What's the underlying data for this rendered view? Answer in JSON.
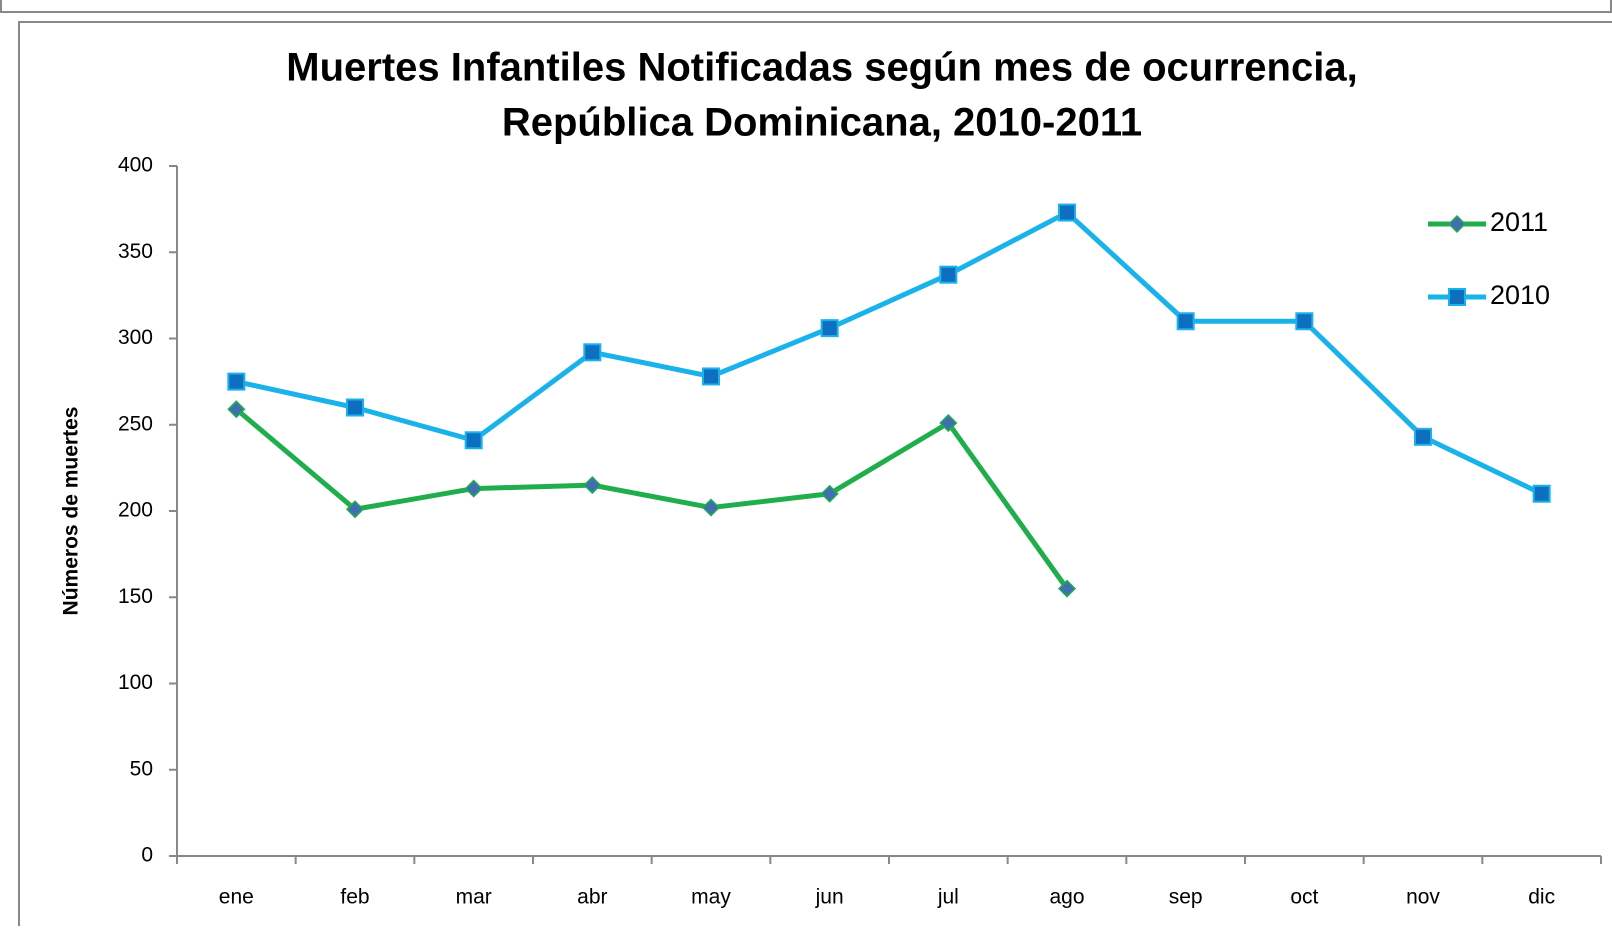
{
  "chart_data": {
    "type": "line",
    "title": [
      "Muertes Infantiles Notificadas según mes de ocurrencia,",
      "República Dominicana, 2010-2011"
    ],
    "y_label": "Números de muertes",
    "categories": [
      "ene",
      "feb",
      "mar",
      "abr",
      "may",
      "jun",
      "jul",
      "ago",
      "sep",
      "oct",
      "nov",
      "dic"
    ],
    "series": [
      {
        "name": "2011",
        "color": "#1fae4b",
        "marker": "diamond",
        "values": [
          259,
          201,
          213,
          215,
          202,
          210,
          251,
          155,
          null,
          null,
          null,
          null
        ]
      },
      {
        "name": "2010",
        "color": "#1ab2ea",
        "marker": "square",
        "values": [
          275,
          260,
          241,
          292,
          278,
          306,
          337,
          373,
          310,
          310,
          243,
          210
        ]
      }
    ],
    "ylim": [
      0,
      400
    ],
    "yticks": [
      0,
      50,
      100,
      150,
      200,
      250,
      300,
      350,
      400
    ],
    "legend": "upper-right",
    "grid": false
  }
}
